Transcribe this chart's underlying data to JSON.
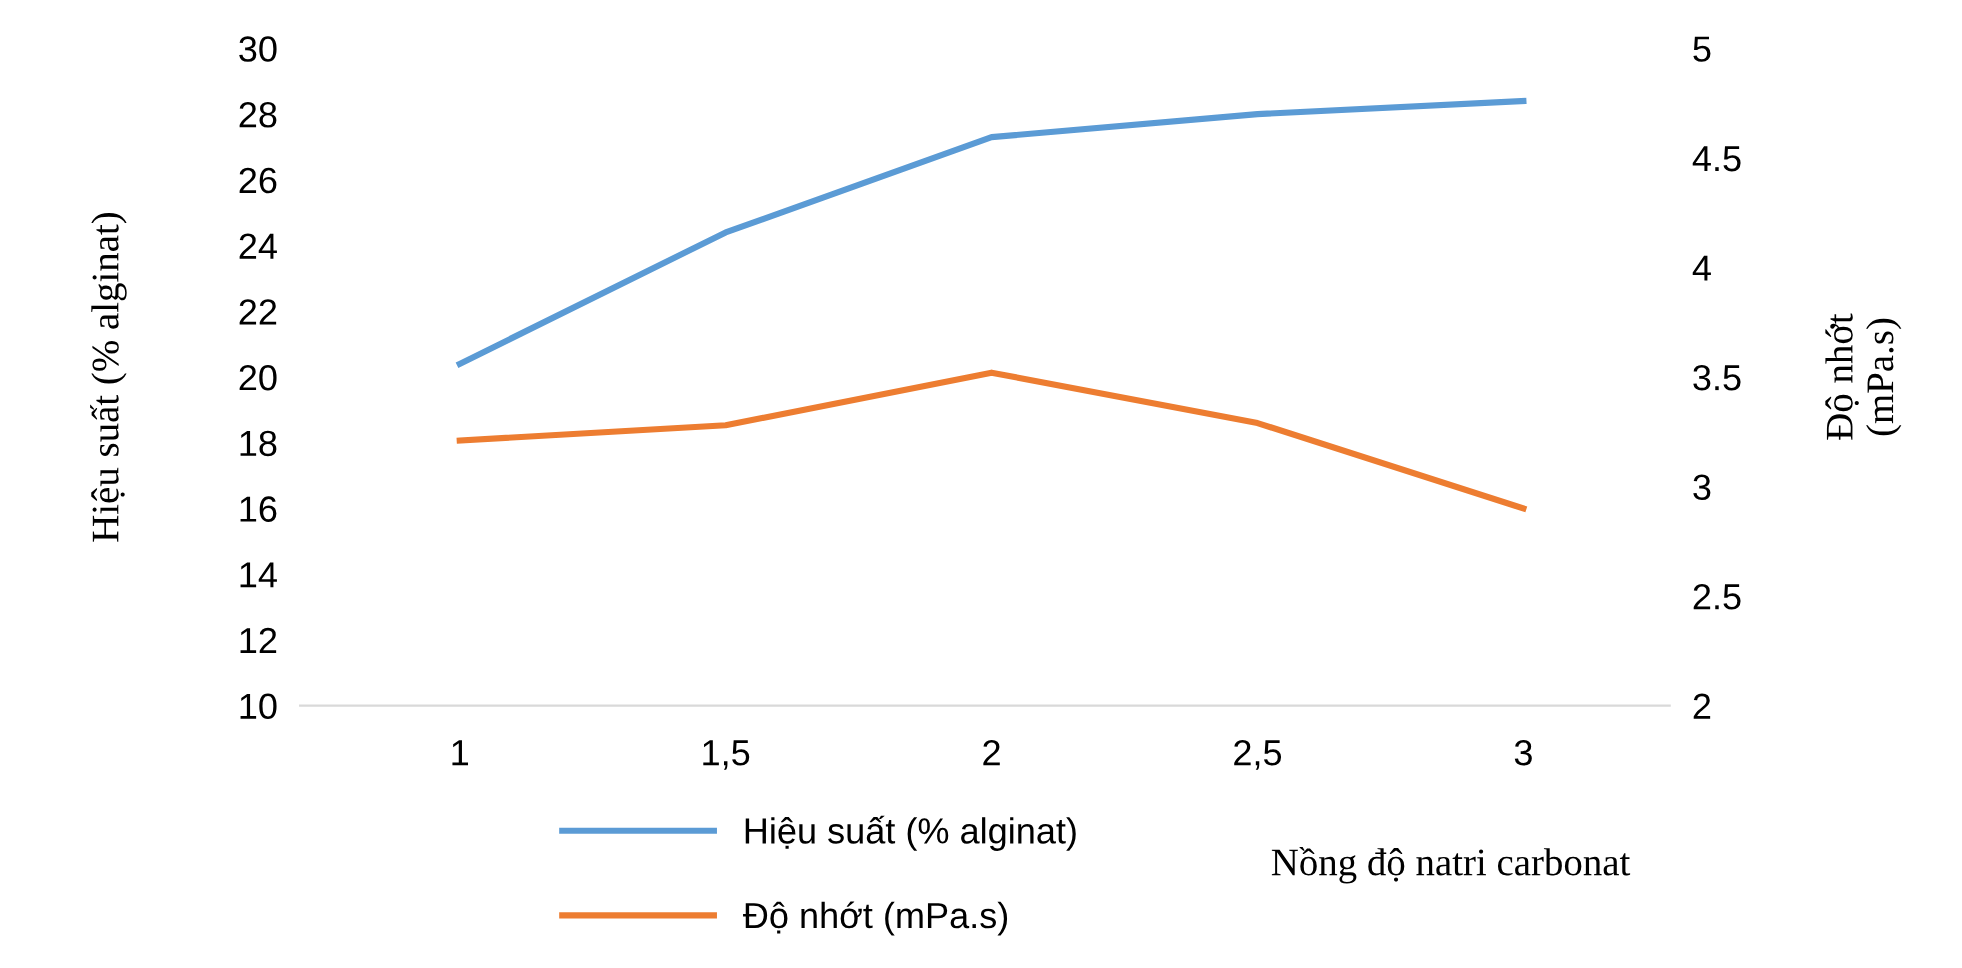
{
  "chart_data": {
    "type": "line",
    "categories": [
      "1",
      "1,5",
      "2",
      "2,5",
      "3"
    ],
    "xlabel": "Nồng độ natri carbonat",
    "ylabel": "Hiệu suất (% alginat)",
    "y2label": "Độ nhớt\n(mPa.s)",
    "series": [
      {
        "name": "Hiệu suất (% alginat)",
        "color": "#5b9bd5",
        "values": [
          20.4,
          24.4,
          27.3,
          28.0,
          28.4
        ]
      },
      {
        "name": "Độ nhớt (mPa.s)",
        "color": "#ed7d31",
        "values": [
          3.21,
          3.28,
          3.52,
          3.29,
          2.9
        ],
        "axis": "y2"
      }
    ],
    "ylim": [
      10,
      30
    ],
    "yticks": [
      10,
      12,
      14,
      16,
      18,
      20,
      22,
      24,
      26,
      28,
      30
    ],
    "y2lim": [
      2,
      5
    ],
    "y2ticks": [
      2,
      2.5,
      3,
      3.5,
      4,
      4.5,
      5
    ],
    "grid": false,
    "legend": "bottom",
    "marker": "none",
    "line_style": "solid"
  }
}
